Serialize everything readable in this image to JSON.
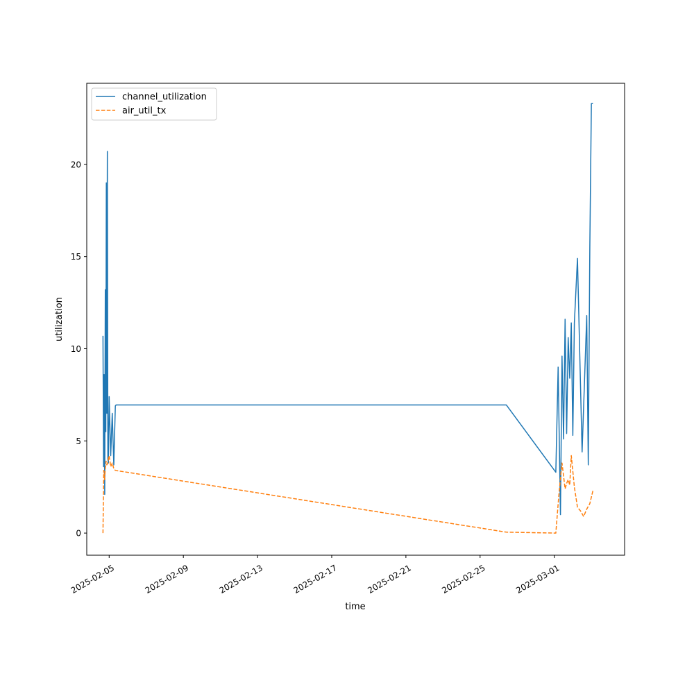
{
  "chart_data": {
    "type": "line",
    "title": "",
    "xlabel": "time",
    "ylabel": "utilization",
    "x_axis_type": "date",
    "xlim": [
      "2025-02-03T19:00",
      "2025-03-04T19:00"
    ],
    "ylim": [
      -1.2,
      24.4
    ],
    "x_ticks": [
      "2025-02-05",
      "2025-02-09",
      "2025-02-13",
      "2025-02-17",
      "2025-02-21",
      "2025-02-25",
      "2025-03-01"
    ],
    "y_ticks": [
      0,
      5,
      10,
      15,
      20
    ],
    "grid": false,
    "legend_position": "upper left",
    "series": [
      {
        "name": "channel_utilization",
        "color": "#1f77b4",
        "line_style": "solid",
        "x": [
          "2025-02-04T16:00",
          "2025-02-04T16:45",
          "2025-02-04T17:30",
          "2025-02-04T18:15",
          "2025-02-04T19:00",
          "2025-02-04T19:40",
          "2025-02-04T20:20",
          "2025-02-04T21:00",
          "2025-02-04T21:40",
          "2025-02-04T22:20",
          "2025-02-04T23:00",
          "2025-02-05T00:00",
          "2025-02-05T02:00",
          "2025-02-05T04:00",
          "2025-02-05T06:00",
          "2025-02-05T08:00",
          "2025-02-05T09:00",
          "2025-02-05T10:00",
          "2025-02-05T12:00",
          "2025-02-05T13:00",
          "2025-02-26T10:00",
          "2025-03-01T02:00",
          "2025-03-01T05:00",
          "2025-03-01T08:00",
          "2025-03-01T10:00",
          "2025-03-01T12:00",
          "2025-03-01T14:00",
          "2025-03-01T16:00",
          "2025-03-01T18:00",
          "2025-03-01T20:00",
          "2025-03-01T22:00",
          "2025-03-02T00:00",
          "2025-03-02T02:00",
          "2025-03-02T06:00",
          "2025-03-02T12:00",
          "2025-03-02T18:00",
          "2025-03-02T20:00",
          "2025-03-02T22:00",
          "2025-03-03T00:00",
          "2025-03-03T02:00"
        ],
        "y": [
          10.7,
          3.6,
          8.6,
          2.1,
          13.2,
          5.5,
          19.0,
          6.5,
          20.7,
          4.0,
          3.8,
          7.4,
          4.2,
          6.5,
          3.7,
          6.9,
          6.95,
          6.95,
          6.95,
          6.95,
          6.95,
          3.3,
          9.0,
          1.0,
          9.6,
          5.1,
          11.6,
          5.4,
          10.6,
          8.4,
          11.4,
          5.3,
          11.4,
          14.9,
          4.4,
          11.8,
          3.7,
          15.5,
          23.3,
          23.3
        ]
      },
      {
        "name": "air_util_tx",
        "color": "#ff7f0e",
        "line_style": "dashed",
        "x": [
          "2025-02-04T16:00",
          "2025-02-04T17:00",
          "2025-02-04T18:00",
          "2025-02-04T19:00",
          "2025-02-04T20:00",
          "2025-02-04T21:00",
          "2025-02-04T22:00",
          "2025-02-05T00:00",
          "2025-02-05T02:00",
          "2025-02-05T04:00",
          "2025-02-05T06:00",
          "2025-02-05T08:00",
          "2025-02-26T10:00",
          "2025-03-01T02:00",
          "2025-03-01T06:00",
          "2025-03-01T10:00",
          "2025-03-01T14:00",
          "2025-03-01T16:00",
          "2025-03-01T18:00",
          "2025-03-01T20:00",
          "2025-03-01T22:00",
          "2025-03-02T02:00",
          "2025-03-02T06:00",
          "2025-03-02T10:00",
          "2025-03-02T14:00",
          "2025-03-02T18:00",
          "2025-03-02T22:00",
          "2025-03-03T02:00"
        ],
        "y": [
          0.0,
          3.4,
          2.9,
          3.5,
          3.9,
          3.7,
          3.8,
          4.2,
          3.6,
          3.8,
          3.5,
          3.4,
          0.05,
          0.0,
          2.1,
          3.8,
          2.4,
          2.7,
          2.9,
          2.6,
          4.2,
          2.5,
          1.4,
          1.2,
          0.9,
          1.3,
          1.6,
          2.3
        ]
      }
    ]
  }
}
